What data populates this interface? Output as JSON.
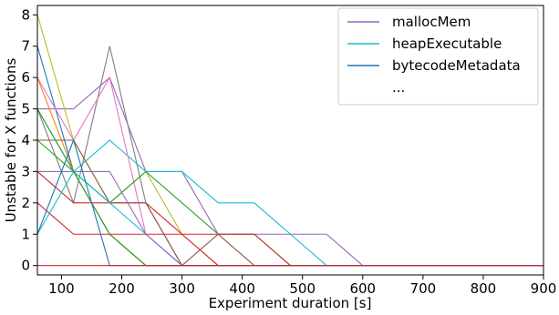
{
  "chart_data": {
    "type": "line",
    "xlabel": "Experiment duration [s]",
    "ylabel": "Unstable for X functions",
    "xlim": [
      60,
      900
    ],
    "ylim": [
      -0.3,
      8.3
    ],
    "x_ticks": [
      100,
      200,
      300,
      400,
      500,
      600,
      700,
      800,
      900
    ],
    "y_ticks": [
      0,
      1,
      2,
      3,
      4,
      5,
      6,
      7,
      8
    ],
    "x_tick_labels": [
      "100",
      "200",
      "300",
      "400",
      "500",
      "600",
      "700",
      "800",
      "900"
    ],
    "y_tick_labels": [
      "0",
      "1",
      "2",
      "3",
      "4",
      "5",
      "6",
      "7",
      "8"
    ],
    "grid": false,
    "legend_position": "top-right",
    "legend_entries": [
      "mallocMem",
      "heapExecutable",
      "bytecodeMetadata",
      "..."
    ],
    "x": [
      60,
      120,
      180,
      240,
      300,
      360,
      420,
      480,
      540,
      600,
      660,
      720,
      780,
      840,
      900
    ],
    "series": [
      {
        "name": "mallocMem",
        "color": "#9467bd",
        "values": [
          5,
          5,
          6,
          3,
          3,
          1,
          1,
          1,
          1,
          0,
          0,
          0,
          0,
          0,
          0
        ]
      },
      {
        "name": "heapExecutable",
        "color": "#17becf",
        "values": [
          5,
          3,
          4,
          3,
          3,
          2,
          2,
          1,
          0,
          0,
          0,
          0,
          0,
          0,
          0
        ]
      },
      {
        "name": "bytecodeMetadata",
        "color": "#1f77b4",
        "values": [
          7,
          3,
          1,
          0,
          0,
          0,
          0,
          0,
          0,
          0,
          0,
          0,
          0,
          0,
          0
        ]
      },
      {
        "color": "#7f7f7f",
        "values": [
          5,
          2,
          7,
          2,
          0,
          0,
          0,
          0,
          0,
          0,
          0,
          0,
          0,
          0,
          0
        ]
      },
      {
        "color": "#e377c2",
        "values": [
          6,
          4,
          6,
          1,
          0,
          0,
          0,
          0,
          0,
          0,
          0,
          0,
          0,
          0,
          0
        ]
      },
      {
        "color": "#bcbd22",
        "values": [
          8,
          4,
          2,
          3,
          1,
          0,
          0,
          0,
          0,
          0,
          0,
          0,
          0,
          0,
          0
        ]
      },
      {
        "color": "#2ca02c",
        "values": [
          4,
          3,
          2,
          3,
          2,
          1,
          1,
          0,
          0,
          0,
          0,
          0,
          0,
          0,
          0
        ]
      },
      {
        "color": "#d62728",
        "values": [
          3,
          2,
          2,
          2,
          1,
          0,
          0,
          0,
          0,
          0,
          0,
          0,
          0,
          0,
          0
        ]
      },
      {
        "color": "#d62728",
        "values": [
          2,
          1,
          1,
          1,
          1,
          1,
          1,
          0,
          0,
          0,
          0,
          0,
          0,
          0,
          0
        ]
      },
      {
        "color": "#ff7f0e",
        "values": [
          6,
          3,
          1,
          0,
          0,
          0,
          0,
          0,
          0,
          0,
          0,
          0,
          0,
          0,
          0
        ]
      },
      {
        "color": "#8c564b",
        "values": [
          4,
          4,
          2,
          2,
          0,
          1,
          0,
          0,
          0,
          0,
          0,
          0,
          0,
          0,
          0
        ]
      },
      {
        "color": "#17becf",
        "values": [
          1,
          3,
          2,
          1,
          0,
          0,
          0,
          0,
          0,
          0,
          0,
          0,
          0,
          0,
          0
        ]
      },
      {
        "color": "#2ca02c",
        "values": [
          5,
          3,
          1,
          0,
          0,
          0,
          0,
          0,
          0,
          0,
          0,
          0,
          0,
          0,
          0
        ]
      },
      {
        "color": "#9467bd",
        "values": [
          3,
          3,
          3,
          1,
          0,
          0,
          0,
          0,
          0,
          0,
          0,
          0,
          0,
          0,
          0
        ]
      },
      {
        "color": "#1f77b4",
        "values": [
          1,
          4,
          0,
          0,
          0,
          0,
          0,
          0,
          0,
          0,
          0,
          0,
          0,
          0,
          0
        ]
      },
      {
        "color": "#d62728",
        "values": [
          0,
          0,
          0,
          0,
          0,
          0,
          0,
          0,
          0,
          0,
          0,
          0,
          0,
          0,
          0
        ]
      }
    ]
  }
}
